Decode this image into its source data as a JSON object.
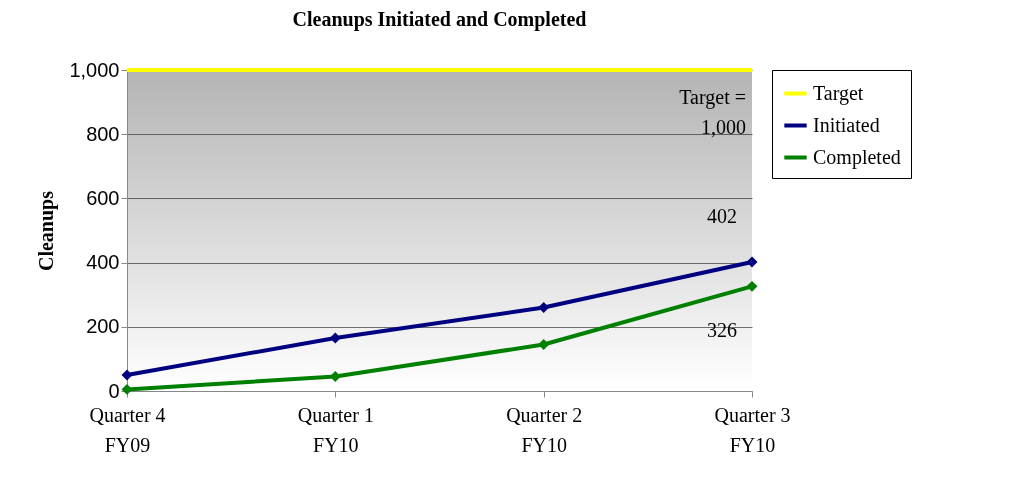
{
  "chart_data": {
    "type": "line",
    "title": "Cleanups Initiated and Completed",
    "ylabel": "Cleanups",
    "categories": [
      "Quarter 4 FY09",
      "Quarter 1 FY10",
      "Quarter 2 FY10",
      "Quarter 3 FY10"
    ],
    "series": [
      {
        "name": "Target",
        "color": "#ffff00",
        "values": [
          1000,
          1000,
          1000,
          1000
        ],
        "marker": "none"
      },
      {
        "name": "Initiated",
        "color": "#000080",
        "values": [
          50,
          165,
          260,
          402
        ],
        "marker": "diamond",
        "value_labels": [
          null,
          null,
          null,
          "402"
        ]
      },
      {
        "name": "Completed",
        "color": "#008000",
        "values": [
          5,
          45,
          145,
          326
        ],
        "marker": "diamond",
        "value_labels": [
          null,
          null,
          null,
          "326"
        ]
      }
    ],
    "ylim": [
      0,
      1000
    ],
    "yticks": [
      {
        "value": 0,
        "label": "0"
      },
      {
        "value": 200,
        "label": "200"
      },
      {
        "value": 400,
        "label": "400"
      },
      {
        "value": 600,
        "label": "600"
      },
      {
        "value": 800,
        "label": "800"
      },
      {
        "value": 1000,
        "label": "1,000"
      }
    ],
    "grid": "y",
    "legend": "right",
    "line_style": "solid",
    "annotations": [
      "Target = 1,000"
    ]
  }
}
